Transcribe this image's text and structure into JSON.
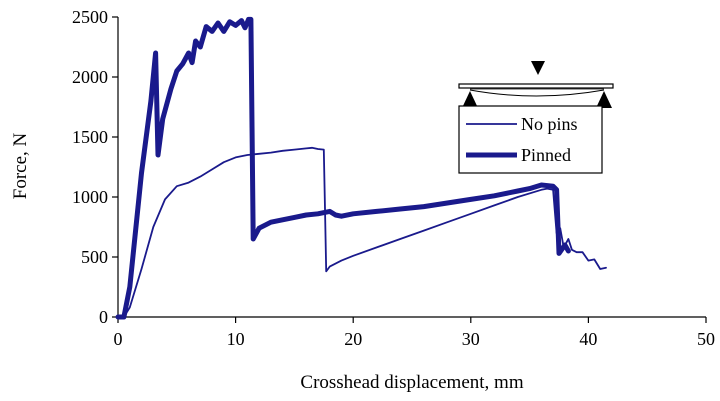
{
  "chart_data": {
    "type": "line",
    "title": "",
    "xlabel": "Crosshead displacement, mm",
    "ylabel": "Force, N",
    "xlim": [
      0,
      50
    ],
    "ylim": [
      0,
      2500
    ],
    "xticks": [
      0,
      10,
      20,
      30,
      40,
      50
    ],
    "yticks": [
      0,
      500,
      1000,
      1500,
      2000,
      2500
    ],
    "grid": false,
    "legend": {
      "position": "upper-right",
      "has_schematic": true,
      "entries": [
        "No pins",
        "Pinned"
      ]
    },
    "series": [
      {
        "name": "No pins",
        "color": "#1a1a8c",
        "style": "thin",
        "points": [
          [
            0,
            0
          ],
          [
            0.5,
            0
          ],
          [
            1,
            80
          ],
          [
            2,
            400
          ],
          [
            3,
            750
          ],
          [
            4,
            980
          ],
          [
            5,
            1090
          ],
          [
            6,
            1120
          ],
          [
            7,
            1170
          ],
          [
            8,
            1230
          ],
          [
            9,
            1290
          ],
          [
            10,
            1330
          ],
          [
            11,
            1350
          ],
          [
            12,
            1360
          ],
          [
            13,
            1370
          ],
          [
            14,
            1385
          ],
          [
            15,
            1395
          ],
          [
            16,
            1405
          ],
          [
            16.5,
            1410
          ],
          [
            17,
            1400
          ],
          [
            17.5,
            1395
          ],
          [
            17.6,
            900
          ],
          [
            17.7,
            380
          ],
          [
            18,
            420
          ],
          [
            19,
            470
          ],
          [
            20,
            510
          ],
          [
            22,
            580
          ],
          [
            24,
            650
          ],
          [
            26,
            720
          ],
          [
            28,
            790
          ],
          [
            30,
            860
          ],
          [
            32,
            930
          ],
          [
            34,
            1000
          ],
          [
            36,
            1060
          ],
          [
            36.5,
            1070
          ],
          [
            37,
            1060
          ],
          [
            37.3,
            700
          ],
          [
            37.6,
            740
          ],
          [
            37.9,
            580
          ],
          [
            38.3,
            650
          ],
          [
            38.6,
            560
          ],
          [
            39,
            540
          ],
          [
            39.5,
            540
          ],
          [
            40,
            470
          ],
          [
            40.5,
            480
          ],
          [
            41,
            400
          ],
          [
            41.5,
            410
          ]
        ]
      },
      {
        "name": "Pinned",
        "color": "#1a1a8c",
        "style": "thick",
        "points": [
          [
            0,
            0
          ],
          [
            0.5,
            0
          ],
          [
            1,
            250
          ],
          [
            2,
            1200
          ],
          [
            2.8,
            1800
          ],
          [
            3.2,
            2200
          ],
          [
            3.4,
            1350
          ],
          [
            3.8,
            1650
          ],
          [
            4.5,
            1900
          ],
          [
            5,
            2050
          ],
          [
            5.5,
            2110
          ],
          [
            6,
            2200
          ],
          [
            6.3,
            2120
          ],
          [
            6.6,
            2300
          ],
          [
            7,
            2250
          ],
          [
            7.5,
            2420
          ],
          [
            8,
            2380
          ],
          [
            8.5,
            2450
          ],
          [
            9,
            2380
          ],
          [
            9.5,
            2460
          ],
          [
            10,
            2430
          ],
          [
            10.5,
            2470
          ],
          [
            10.8,
            2410
          ],
          [
            11.1,
            2480
          ],
          [
            11.3,
            2480
          ],
          [
            11.5,
            650
          ],
          [
            12,
            740
          ],
          [
            13,
            790
          ],
          [
            14,
            810
          ],
          [
            15,
            830
          ],
          [
            16,
            850
          ],
          [
            17,
            860
          ],
          [
            18,
            880
          ],
          [
            18.5,
            850
          ],
          [
            19,
            840
          ],
          [
            20,
            860
          ],
          [
            22,
            880
          ],
          [
            24,
            900
          ],
          [
            26,
            920
          ],
          [
            28,
            950
          ],
          [
            30,
            980
          ],
          [
            32,
            1010
          ],
          [
            34,
            1050
          ],
          [
            35,
            1070
          ],
          [
            36,
            1100
          ],
          [
            37,
            1090
          ],
          [
            37.3,
            1060
          ],
          [
            37.5,
            530
          ],
          [
            38,
            600
          ],
          [
            38.3,
            550
          ]
        ]
      }
    ]
  }
}
